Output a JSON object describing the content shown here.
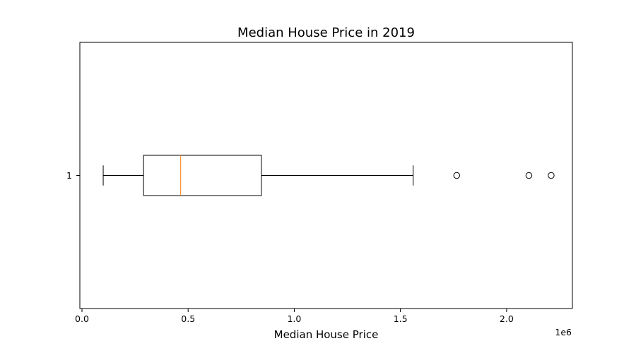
{
  "chart_data": {
    "type": "boxplot",
    "orientation": "horizontal",
    "title": "Median House Price in 2019",
    "xlabel": "Median House Price",
    "ylabel": "",
    "x_offset_label": "1e6",
    "xlim": [
      -10000,
      2310000
    ],
    "x_ticks": [
      0,
      500000,
      1000000,
      1500000,
      2000000
    ],
    "x_tick_labels": [
      "0.0",
      "0.5",
      "1.0",
      "1.5",
      "2.0"
    ],
    "y_tick_labels": [
      "1"
    ],
    "grid": false,
    "boxes": [
      {
        "category": "1",
        "whisker_low": 100000,
        "q1": 290000,
        "median": 465000,
        "q3": 845000,
        "whisker_high": 1560000,
        "outliers": [
          1765000,
          2105000,
          2210000
        ]
      }
    ],
    "colors": {
      "box": "#000000",
      "median": "#ff7f0e",
      "outlier_edge": "#000000"
    }
  }
}
